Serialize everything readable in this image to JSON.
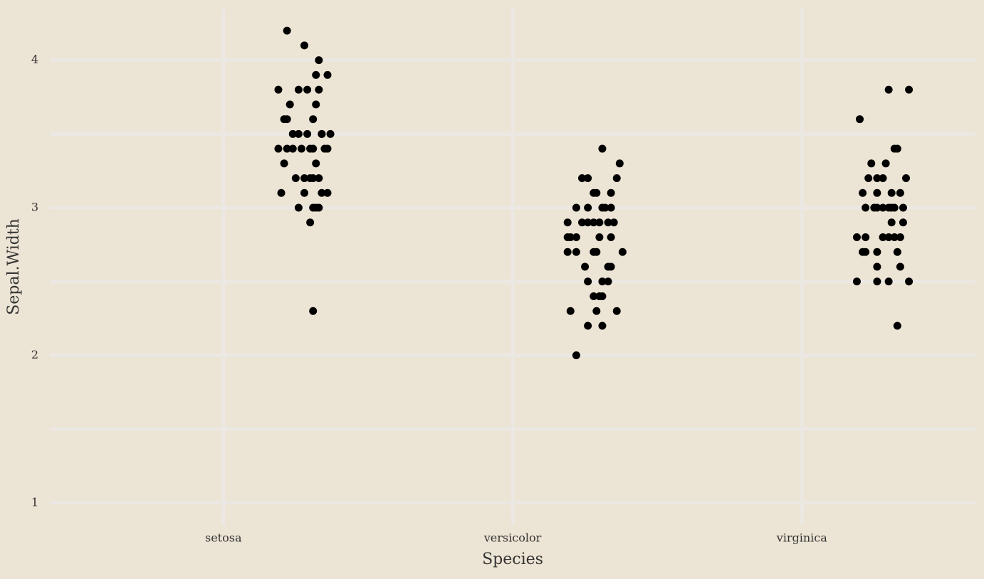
{
  "chart_data": {
    "type": "scatter",
    "x_label": "Species",
    "y_label": "Sepal.Width",
    "xlim": [
      0.4,
      3.6
    ],
    "ylim": [
      0.85,
      4.35
    ],
    "xticks": [
      {
        "value": 1,
        "label": "setosa"
      },
      {
        "value": 2,
        "label": "versicolor"
      },
      {
        "value": 3,
        "label": "virginica"
      }
    ],
    "yticks": [
      1,
      2,
      3,
      4
    ],
    "y_minor_ticks": [
      1.5,
      2.5,
      3.5
    ],
    "grid": true,
    "color": "#000000",
    "x": [
      1.22,
      1.28,
      1.33,
      1.32,
      1.36,
      1.19,
      1.26,
      1.29,
      1.33,
      1.23,
      1.32,
      1.21,
      1.22,
      1.31,
      1.24,
      1.26,
      1.29,
      1.34,
      1.34,
      1.37,
      1.19,
      1.22,
      1.24,
      1.27,
      1.3,
      1.31,
      1.35,
      1.36,
      1.21,
      1.32,
      1.25,
      1.28,
      1.3,
      1.31,
      1.33,
      1.2,
      1.28,
      1.34,
      1.36,
      1.26,
      1.31,
      1.32,
      1.33,
      1.3,
      1.31,
      2.31,
      2.37,
      2.24,
      2.26,
      2.36,
      2.28,
      2.29,
      2.34,
      2.22,
      2.26,
      2.31,
      2.32,
      2.34,
      2.19,
      2.24,
      2.26,
      2.28,
      2.3,
      2.33,
      2.35,
      2.19,
      2.2,
      2.22,
      2.3,
      2.34,
      2.19,
      2.22,
      2.28,
      2.29,
      2.38,
      2.25,
      2.33,
      2.34,
      2.26,
      2.31,
      2.33,
      2.28,
      2.3,
      2.31,
      2.2,
      2.29,
      2.36,
      2.26,
      2.31,
      2.22,
      3.3,
      3.37,
      3.2,
      3.32,
      3.33,
      3.24,
      3.29,
      3.23,
      3.26,
      3.28,
      3.36,
      3.21,
      3.26,
      3.31,
      3.34,
      3.22,
      3.25,
      3.26,
      3.28,
      3.3,
      3.31,
      3.32,
      3.35,
      3.31,
      3.35,
      3.19,
      3.22,
      3.28,
      3.3,
      3.32,
      3.34,
      3.21,
      3.22,
      3.26,
      3.33,
      3.26,
      3.34,
      3.19,
      3.26,
      3.3,
      3.37,
      3.33
    ],
    "values": [
      4.2,
      4.1,
      4.0,
      3.9,
      3.9,
      3.8,
      3.8,
      3.8,
      3.8,
      3.7,
      3.7,
      3.6,
      3.6,
      3.6,
      3.5,
      3.5,
      3.5,
      3.5,
      3.5,
      3.5,
      3.4,
      3.4,
      3.4,
      3.4,
      3.4,
      3.4,
      3.4,
      3.4,
      3.3,
      3.3,
      3.2,
      3.2,
      3.2,
      3.2,
      3.2,
      3.1,
      3.1,
      3.1,
      3.1,
      3.0,
      3.0,
      3.0,
      3.0,
      2.9,
      2.3,
      3.4,
      3.3,
      3.2,
      3.2,
      3.2,
      3.1,
      3.1,
      3.1,
      3.0,
      3.0,
      3.0,
      3.0,
      3.0,
      2.9,
      2.9,
      2.9,
      2.9,
      2.9,
      2.9,
      2.9,
      2.8,
      2.8,
      2.8,
      2.8,
      2.8,
      2.7,
      2.7,
      2.7,
      2.7,
      2.7,
      2.6,
      2.6,
      2.6,
      2.5,
      2.5,
      2.5,
      2.4,
      2.4,
      2.4,
      2.3,
      2.3,
      2.3,
      2.2,
      2.2,
      2.0,
      3.8,
      3.8,
      3.6,
      3.4,
      3.4,
      3.3,
      3.3,
      3.2,
      3.2,
      3.2,
      3.2,
      3.1,
      3.1,
      3.1,
      3.1,
      3.0,
      3.0,
      3.0,
      3.0,
      3.0,
      3.0,
      3.0,
      3.0,
      2.9,
      2.9,
      2.8,
      2.8,
      2.8,
      2.8,
      2.8,
      2.8,
      2.7,
      2.7,
      2.7,
      2.7,
      2.6,
      2.6,
      2.5,
      2.5,
      2.5,
      2.5,
      2.2
    ]
  }
}
